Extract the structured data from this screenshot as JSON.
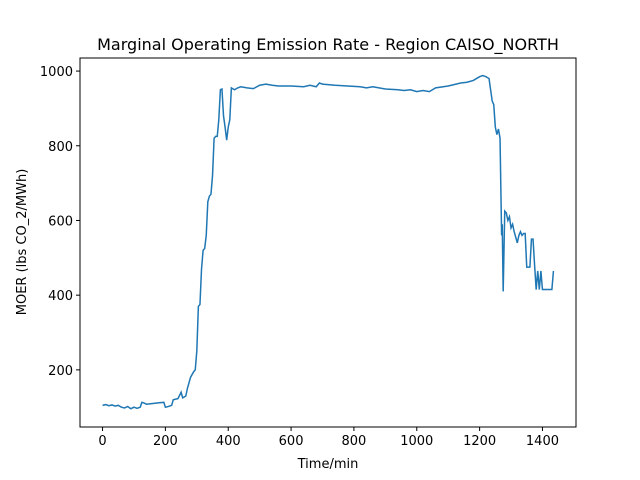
{
  "chart_data": {
    "type": "line",
    "title": "Marginal Operating Emission Rate - Region CAISO_NORTH",
    "x_label": "Time/min",
    "y_label": "MOER (lbs CO_2/MWh)",
    "x": [
      0,
      10,
      20,
      30,
      40,
      50,
      60,
      70,
      80,
      90,
      100,
      110,
      120,
      125,
      130,
      140,
      160,
      180,
      195,
      200,
      210,
      220,
      225,
      240,
      250,
      255,
      265,
      270,
      280,
      290,
      295,
      300,
      305,
      310,
      315,
      320,
      325,
      330,
      335,
      340,
      345,
      350,
      355,
      360,
      365,
      370,
      375,
      380,
      385,
      390,
      395,
      400,
      405,
      410,
      420,
      430,
      440,
      460,
      480,
      500,
      520,
      540,
      560,
      600,
      640,
      660,
      680,
      690,
      700,
      740,
      780,
      820,
      840,
      860,
      880,
      900,
      940,
      960,
      980,
      1000,
      1020,
      1040,
      1060,
      1100,
      1140,
      1160,
      1180,
      1200,
      1210,
      1220,
      1230,
      1240,
      1245,
      1250,
      1255,
      1260,
      1265,
      1270,
      1272,
      1275,
      1280,
      1285,
      1290,
      1295,
      1300,
      1305,
      1310,
      1320,
      1325,
      1330,
      1335,
      1340,
      1345,
      1350,
      1360,
      1365,
      1370,
      1375,
      1380,
      1385,
      1390,
      1395,
      1400,
      1420,
      1430,
      1435
    ],
    "series": [
      {
        "name": "MOER",
        "color": "#1f77b4",
        "values": [
          105,
          107,
          104,
          106,
          103,
          105,
          100,
          98,
          102,
          96,
          100,
          97,
          100,
          113,
          112,
          108,
          110,
          112,
          113,
          100,
          102,
          105,
          120,
          123,
          140,
          125,
          130,
          150,
          180,
          195,
          200,
          250,
          370,
          375,
          470,
          520,
          525,
          560,
          650,
          665,
          670,
          720,
          820,
          825,
          825,
          870,
          950,
          952,
          880,
          850,
          815,
          850,
          870,
          955,
          950,
          955,
          958,
          955,
          953,
          962,
          965,
          962,
          960,
          960,
          958,
          962,
          958,
          968,
          965,
          962,
          960,
          958,
          955,
          958,
          955,
          952,
          950,
          948,
          950,
          945,
          948,
          945,
          955,
          960,
          968,
          970,
          975,
          985,
          988,
          985,
          980,
          920,
          910,
          850,
          830,
          845,
          820,
          560,
          590,
          410,
          625,
          620,
          600,
          610,
          580,
          590,
          570,
          540,
          560,
          570,
          560,
          565,
          565,
          475,
          475,
          550,
          550,
          480,
          415,
          465,
          415,
          465,
          415,
          415,
          415,
          465
        ]
      }
    ],
    "xlim": [
      -71.75,
      1506.75
    ],
    "ylim": [
      47,
      1035
    ],
    "xticks": [
      0,
      200,
      400,
      600,
      800,
      1000,
      1200,
      1400
    ],
    "yticks": [
      200,
      400,
      600,
      800,
      1000
    ]
  }
}
